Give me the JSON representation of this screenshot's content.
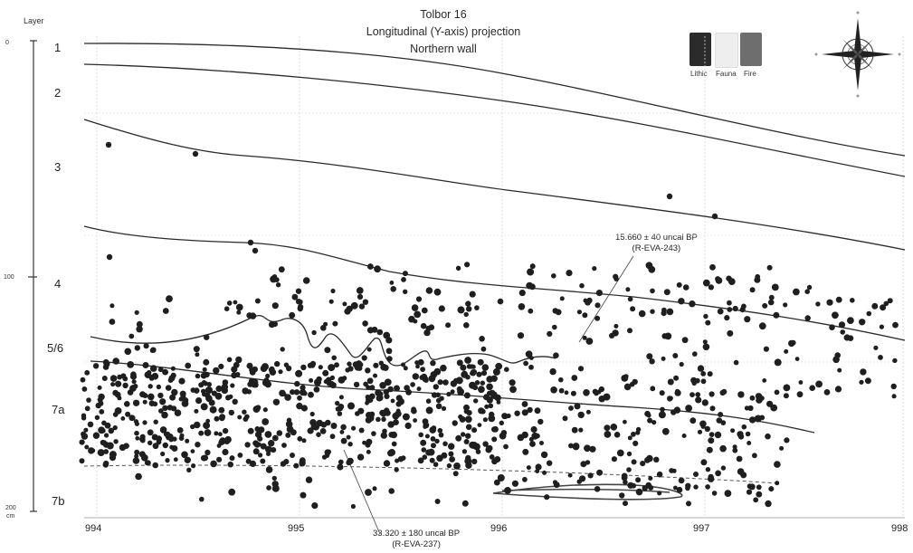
{
  "title": {
    "line1": "Tolbor 16",
    "line2": "Longitudinal (Y-axis) projection",
    "line3": "Northern wall"
  },
  "layer_header": "Layer",
  "layers": [
    "1",
    "2",
    "3",
    "4",
    "5/6",
    "7a",
    "7b"
  ],
  "depth_scale": {
    "top": "0",
    "mid": "100",
    "bottom_value": "200",
    "bottom_unit": "cm"
  },
  "x_ticks": [
    "994",
    "995",
    "996",
    "997",
    "998"
  ],
  "legend": [
    {
      "label": "Lithic",
      "color": "#2b2b2b"
    },
    {
      "label": "Fauna",
      "color": "#eeeeee"
    },
    {
      "label": "Fire",
      "color": "#6e6e6e"
    }
  ],
  "dates": [
    {
      "value": "15.660 ± 40 uncal BP",
      "lab": "(R-EVA-243)"
    },
    {
      "value": "33.320 ± 180 uncal BP",
      "lab": "(R-EVA-237)"
    }
  ],
  "icons": {
    "compass": "compass-rose-icon"
  }
}
